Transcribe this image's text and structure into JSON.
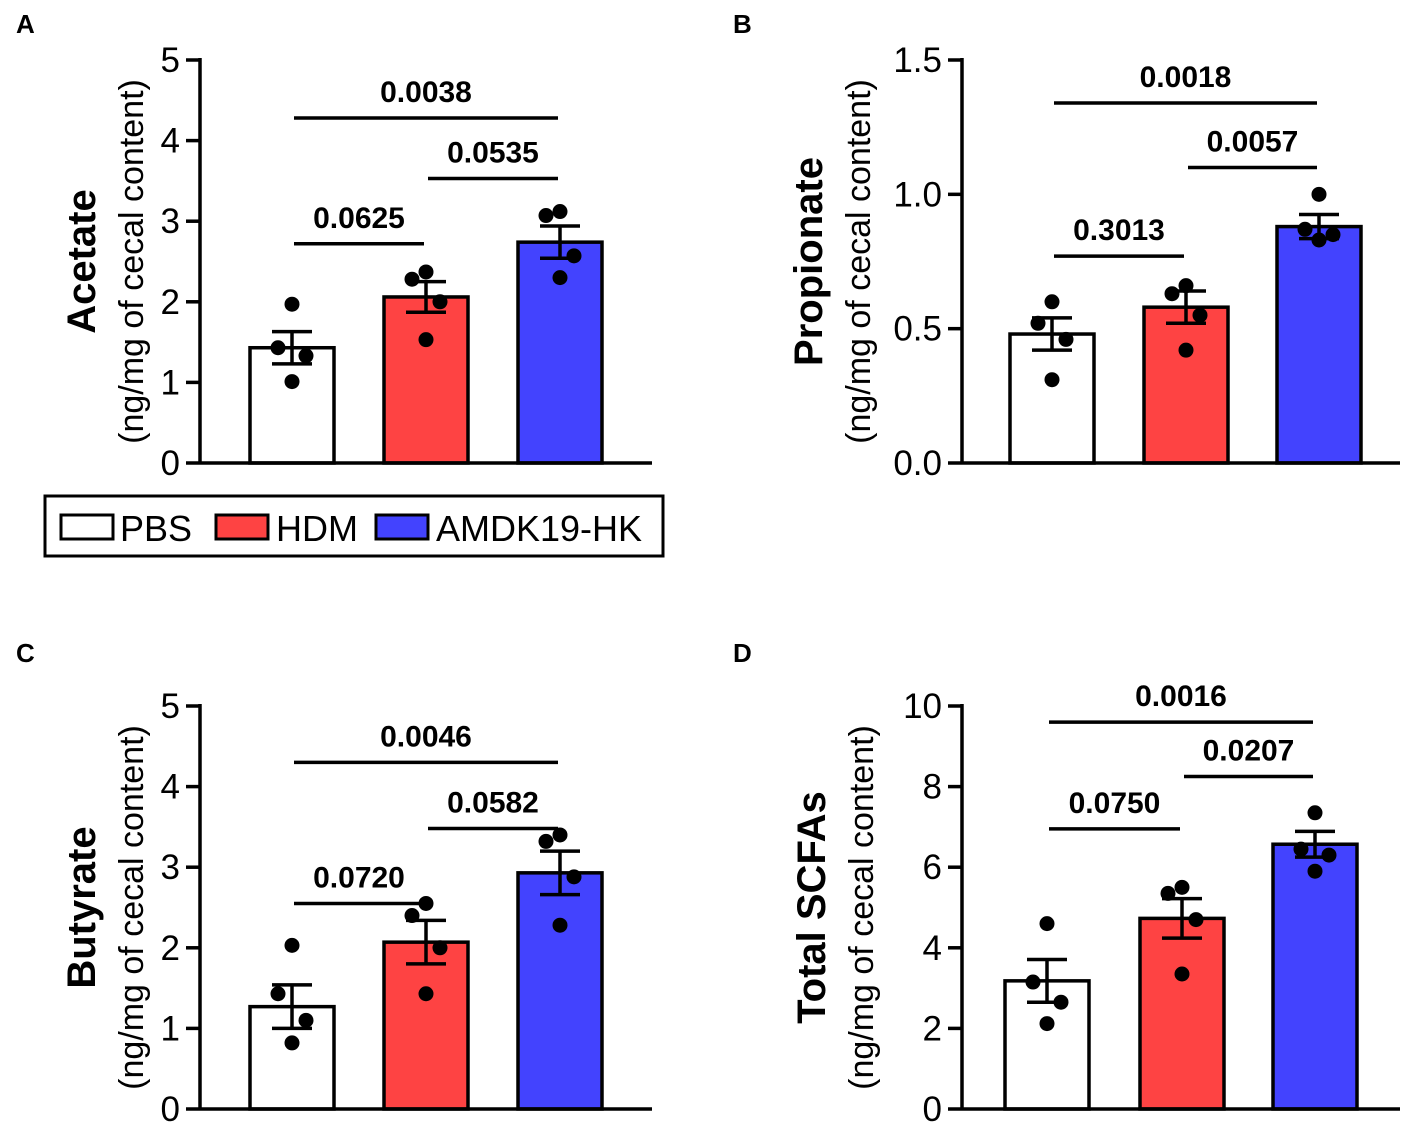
{
  "figure": {
    "legend": {
      "entries": [
        {
          "label": "PBS",
          "color": "#ffffff"
        },
        {
          "label": "HDM",
          "color": "#fe4343"
        },
        {
          "label": "AMDK19-HK",
          "color": "#4343fe"
        }
      ]
    }
  },
  "chart_data": [
    {
      "type": "bar",
      "panel": "A",
      "ylabel": "Acetate",
      "ylabel_sub": "(ng/mg of cecal content)",
      "categories": [
        "PBS",
        "HDM",
        "AMDK19-HK"
      ],
      "colors": [
        "#ffffff",
        "#fe4343",
        "#4343fe"
      ],
      "values": [
        1.43,
        2.06,
        2.74
      ],
      "sem": [
        0.2,
        0.19,
        0.2
      ],
      "points": [
        [
          1.97,
          1.43,
          1.33,
          1.01
        ],
        [
          2.37,
          2.28,
          2.0,
          1.53
        ],
        [
          3.12,
          3.07,
          2.57,
          2.3
        ]
      ],
      "ylim": [
        0,
        5
      ],
      "yticks": [
        0,
        1,
        2,
        3,
        4,
        5
      ],
      "ytick_labels": [
        "0",
        "1",
        "2",
        "3",
        "4",
        "5"
      ],
      "comparisons": [
        {
          "from": 0,
          "to": 1,
          "label": "0.0625",
          "y": 2.72
        },
        {
          "from": 1,
          "to": 2,
          "label": "0.0535",
          "y": 3.53
        },
        {
          "from": 0,
          "to": 2,
          "label": "0.0038",
          "y": 4.28
        }
      ]
    },
    {
      "type": "bar",
      "panel": "B",
      "ylabel": "Propionate",
      "ylabel_sub": "(ng/mg of cecal content)",
      "categories": [
        "PBS",
        "HDM",
        "AMDK19-HK"
      ],
      "colors": [
        "#ffffff",
        "#fe4343",
        "#4343fe"
      ],
      "values": [
        0.48,
        0.58,
        0.88
      ],
      "sem": [
        0.06,
        0.06,
        0.045
      ],
      "points": [
        [
          0.6,
          0.52,
          0.46,
          0.31
        ],
        [
          0.66,
          0.63,
          0.55,
          0.42
        ],
        [
          1.0,
          0.87,
          0.85,
          0.83
        ]
      ],
      "ylim": [
        0,
        1.5
      ],
      "yticks": [
        0,
        0.5,
        1.0,
        1.5
      ],
      "ytick_labels": [
        "0.0",
        "0.5",
        "1.0",
        "1.5"
      ],
      "comparisons": [
        {
          "from": 0,
          "to": 1,
          "label": "0.3013",
          "y": 0.77
        },
        {
          "from": 1,
          "to": 2,
          "label": "0.0057",
          "y": 1.1
        },
        {
          "from": 0,
          "to": 2,
          "label": "0.0018",
          "y": 1.34
        }
      ]
    },
    {
      "type": "bar",
      "panel": "C",
      "ylabel": "Butyrate",
      "ylabel_sub": "(ng/mg of cecal content)",
      "categories": [
        "PBS",
        "HDM",
        "AMDK19-HK"
      ],
      "colors": [
        "#ffffff",
        "#fe4343",
        "#4343fe"
      ],
      "values": [
        1.27,
        2.07,
        2.93
      ],
      "sem": [
        0.27,
        0.27,
        0.27
      ],
      "points": [
        [
          2.03,
          1.43,
          1.1,
          0.82
        ],
        [
          2.55,
          2.4,
          2.0,
          1.43
        ],
        [
          3.4,
          3.32,
          2.88,
          2.28
        ]
      ],
      "ylim": [
        0,
        5
      ],
      "yticks": [
        0,
        1,
        2,
        3,
        4,
        5
      ],
      "ytick_labels": [
        "0",
        "1",
        "2",
        "3",
        "4",
        "5"
      ],
      "comparisons": [
        {
          "from": 0,
          "to": 1,
          "label": "0.0720",
          "y": 2.55
        },
        {
          "from": 1,
          "to": 2,
          "label": "0.0582",
          "y": 3.48
        },
        {
          "from": 0,
          "to": 2,
          "label": "0.0046",
          "y": 4.3
        }
      ]
    },
    {
      "type": "bar",
      "panel": "D",
      "ylabel": "Total SCFAs",
      "ylabel_sub": "(ng/mg of cecal content)",
      "categories": [
        "PBS",
        "HDM",
        "AMDK19-HK"
      ],
      "colors": [
        "#ffffff",
        "#fe4343",
        "#4343fe"
      ],
      "values": [
        3.18,
        4.73,
        6.57
      ],
      "sem": [
        0.53,
        0.49,
        0.32
      ],
      "points": [
        [
          4.6,
          3.15,
          2.65,
          2.12
        ],
        [
          5.5,
          5.35,
          4.7,
          3.35
        ],
        [
          7.35,
          6.45,
          6.3,
          5.9
        ]
      ],
      "ylim": [
        0,
        10
      ],
      "yticks": [
        0,
        2,
        4,
        6,
        8,
        10
      ],
      "ytick_labels": [
        "0",
        "2",
        "4",
        "6",
        "8",
        "10"
      ],
      "comparisons": [
        {
          "from": 0,
          "to": 1,
          "label": "0.0750",
          "y": 6.95
        },
        {
          "from": 1,
          "to": 2,
          "label": "0.0207",
          "y": 8.25
        },
        {
          "from": 0,
          "to": 2,
          "label": "0.0016",
          "y": 9.6
        }
      ]
    }
  ]
}
